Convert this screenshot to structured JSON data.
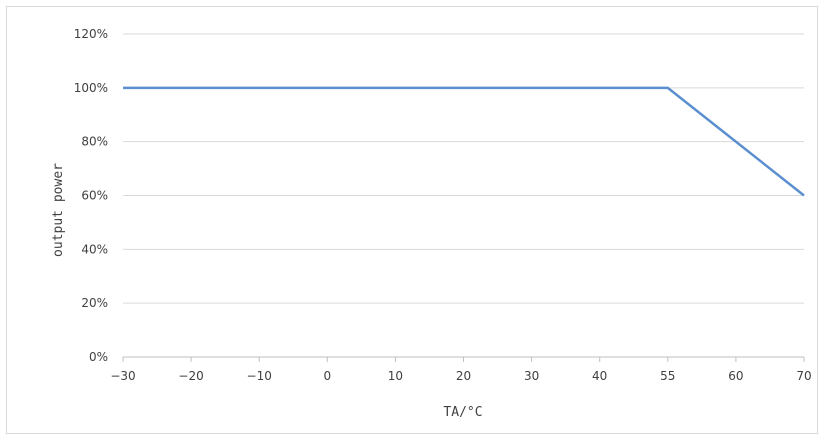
{
  "chart_data": {
    "type": "line",
    "title": "",
    "xlabel": "TA/°C",
    "ylabel": "output power",
    "x_ticks": [
      "-30",
      "-20",
      "-10",
      "0",
      "10",
      "20",
      "30",
      "40",
      "55",
      "60",
      "70"
    ],
    "y_ticks": [
      "0%",
      "20%",
      "40%",
      "60%",
      "80%",
      "100%",
      "120%"
    ],
    "ylim": [
      0,
      120
    ],
    "grid": "horizontal",
    "legend": "none",
    "series": [
      {
        "color": "#5b8fcf",
        "points": [
          {
            "x": "-30",
            "y": 100
          },
          {
            "x": "55",
            "y": 100
          },
          {
            "x": "70",
            "y": 60
          }
        ]
      }
    ]
  }
}
